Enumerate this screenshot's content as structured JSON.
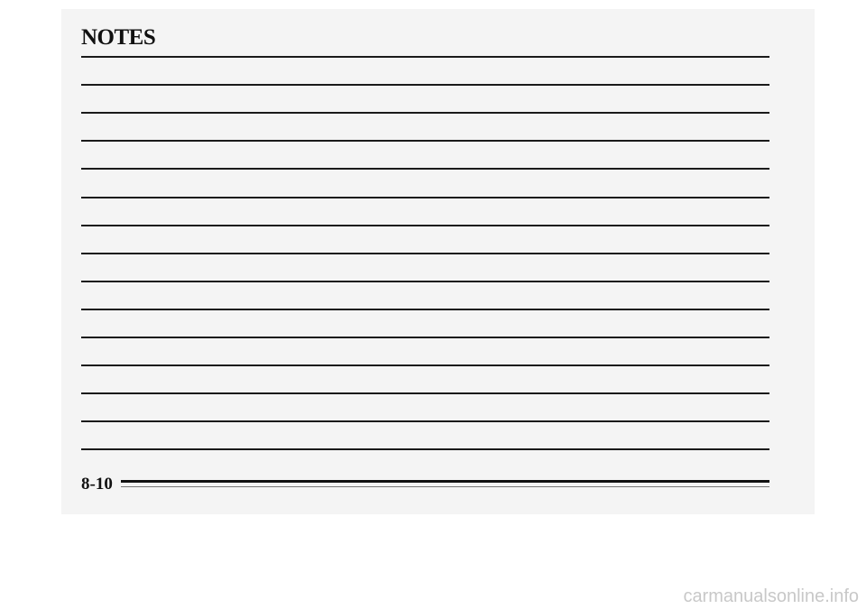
{
  "title": "NOTES",
  "line_count": 15,
  "page_number": "8-10",
  "watermark": "carmanualsonline.info"
}
